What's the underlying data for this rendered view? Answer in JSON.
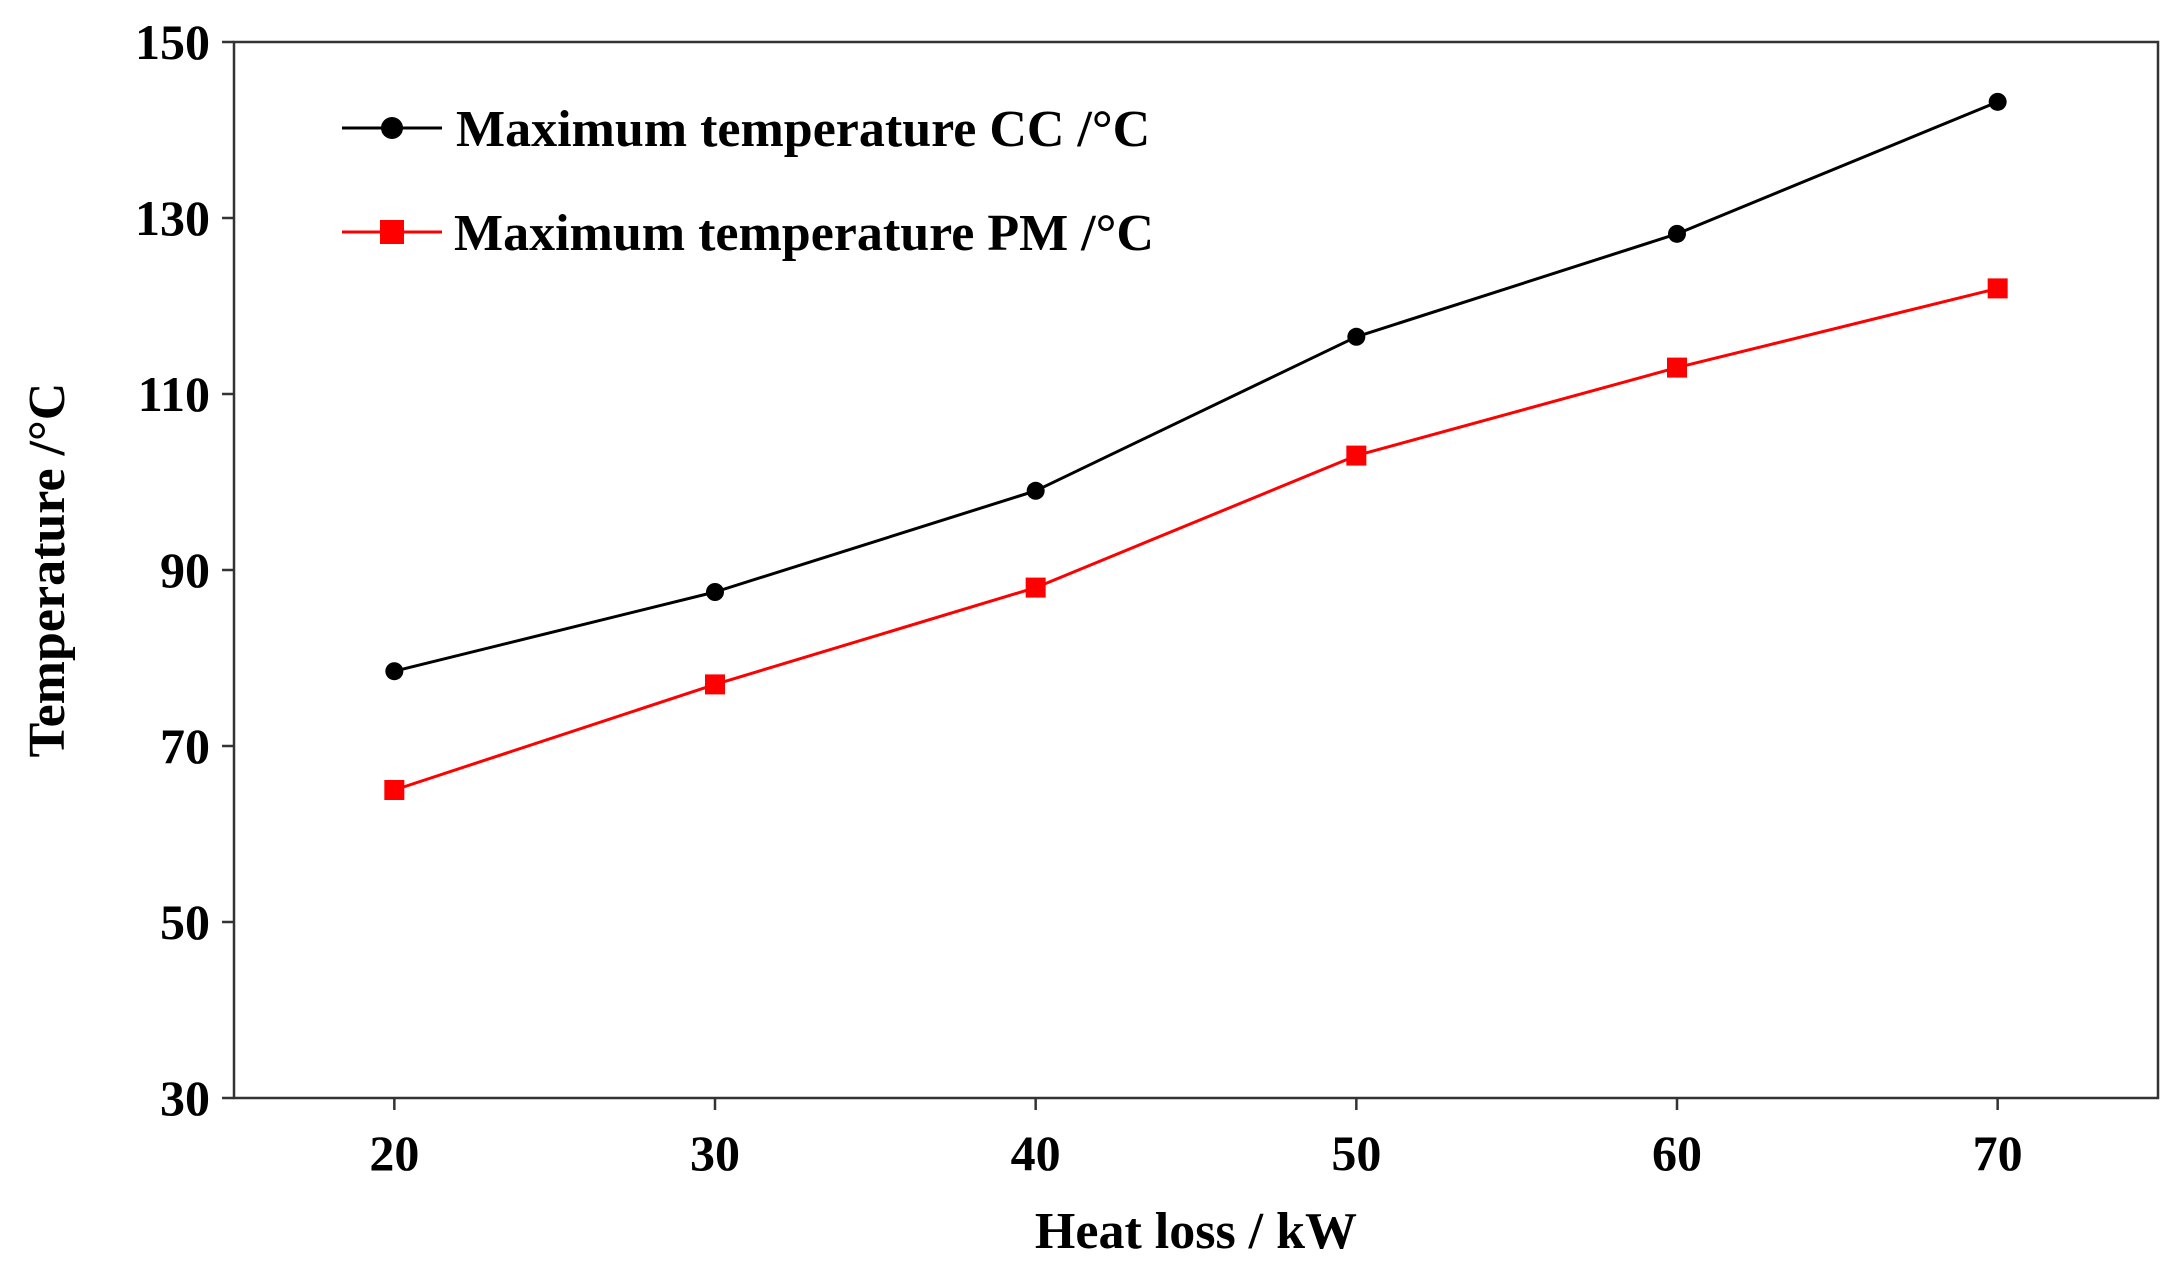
{
  "chart_data": {
    "type": "line",
    "xlabel": "Heat loss / kW",
    "ylabel": "Temperature  /°C",
    "x": [
      20,
      30,
      40,
      50,
      60,
      70
    ],
    "x_ticks": [
      "20",
      "30",
      "40",
      "50",
      "60",
      "70"
    ],
    "xlim": [
      15,
      75
    ],
    "ylim": [
      30,
      150
    ],
    "y_ticks": [
      "30",
      "50",
      "70",
      "90",
      "110",
      "130",
      "150"
    ],
    "grid": false,
    "legend_position": "top-left",
    "series": [
      {
        "name": "Maximum temperature CC /°C",
        "color": "#000000",
        "marker": "circle",
        "values": [
          78.5,
          87.5,
          99.0,
          116.5,
          128.2,
          143.2
        ]
      },
      {
        "name": "Maximum temperature PM /°C",
        "color": "#ff0000",
        "marker": "square",
        "values": [
          65.0,
          77.0,
          88.0,
          103.0,
          113.0,
          122.0
        ]
      }
    ]
  }
}
